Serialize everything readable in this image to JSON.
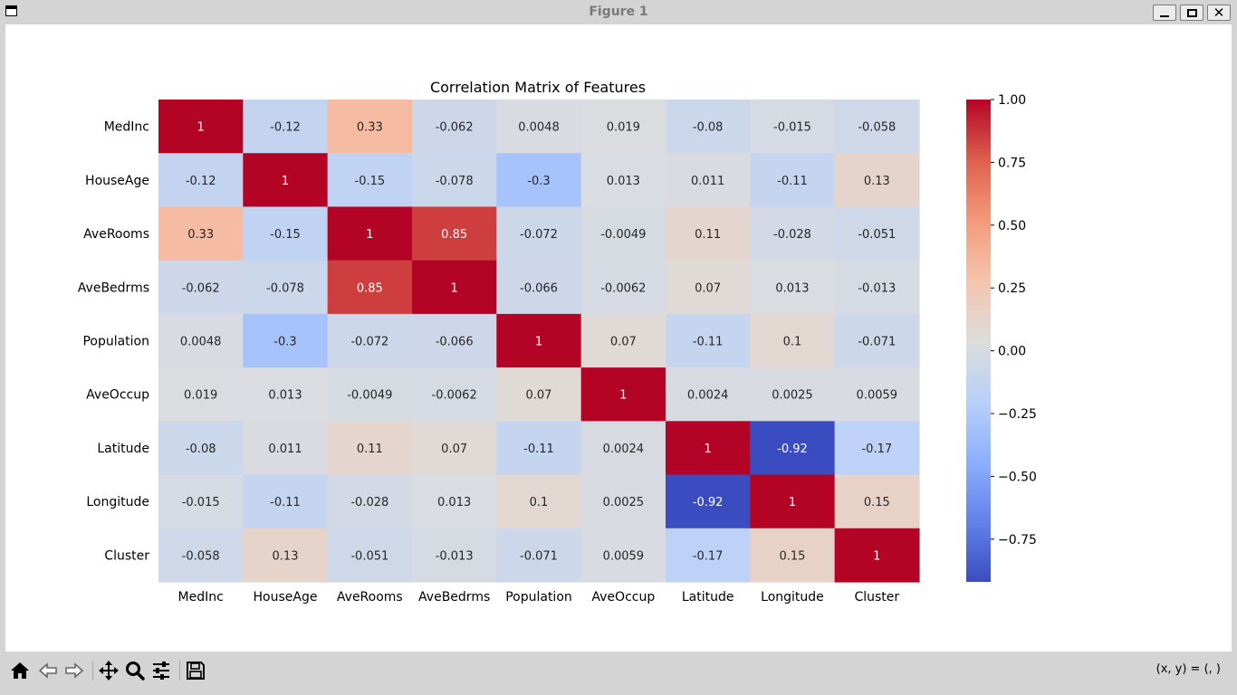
{
  "window": {
    "title": "Figure 1"
  },
  "toolbar": {
    "buttons": [
      {
        "name": "home-button",
        "icon": "home-icon"
      },
      {
        "name": "back-button",
        "icon": "back-arrow-icon"
      },
      {
        "name": "forward-button",
        "icon": "forward-arrow-icon"
      },
      {
        "name": "pan-button",
        "icon": "pan-icon"
      },
      {
        "name": "zoom-button",
        "icon": "zoom-icon"
      },
      {
        "name": "configure-subplots-button",
        "icon": "sliders-icon"
      },
      {
        "name": "save-button",
        "icon": "save-icon"
      }
    ],
    "coords": "(x, y) = (, )"
  },
  "chart_data": {
    "type": "heatmap",
    "title": "Correlation Matrix of Features",
    "colormap": "coolwarm",
    "labels": [
      "MedInc",
      "HouseAge",
      "AveRooms",
      "AveBedrms",
      "Population",
      "AveOccup",
      "Latitude",
      "Longitude",
      "Cluster"
    ],
    "display": [
      [
        "1",
        "-0.12",
        "0.33",
        "-0.062",
        "0.0048",
        "0.019",
        "-0.08",
        "-0.015",
        "-0.058"
      ],
      [
        "-0.12",
        "1",
        "-0.15",
        "-0.078",
        "-0.3",
        "0.013",
        "0.011",
        "-0.11",
        "0.13"
      ],
      [
        "0.33",
        "-0.15",
        "1",
        "0.85",
        "-0.072",
        "-0.0049",
        "0.11",
        "-0.028",
        "-0.051"
      ],
      [
        "-0.062",
        "-0.078",
        "0.85",
        "1",
        "-0.066",
        "-0.0062",
        "0.07",
        "0.013",
        "-0.013"
      ],
      [
        "0.0048",
        "-0.3",
        "-0.072",
        "-0.066",
        "1",
        "0.07",
        "-0.11",
        "0.1",
        "-0.071"
      ],
      [
        "0.019",
        "0.013",
        "-0.0049",
        "-0.0062",
        "0.07",
        "1",
        "0.0024",
        "0.0025",
        "0.0059"
      ],
      [
        "-0.08",
        "0.011",
        "0.11",
        "0.07",
        "-0.11",
        "0.0024",
        "1",
        "-0.92",
        "-0.17"
      ],
      [
        "-0.015",
        "-0.11",
        "-0.028",
        "0.013",
        "0.1",
        "0.0025",
        "-0.92",
        "1",
        "0.15"
      ],
      [
        "-0.058",
        "0.13",
        "-0.051",
        "-0.013",
        "-0.071",
        "0.0059",
        "-0.17",
        "0.15",
        "1"
      ]
    ],
    "vmin": -0.92,
    "vmax": 1.0,
    "colorbar_ticks": [
      {
        "value": 1.0,
        "label": "1.00"
      },
      {
        "value": 0.75,
        "label": "0.75"
      },
      {
        "value": 0.5,
        "label": "0.50"
      },
      {
        "value": 0.25,
        "label": "0.25"
      },
      {
        "value": 0.0,
        "label": "0.00"
      },
      {
        "value": -0.25,
        "label": "−0.25"
      },
      {
        "value": -0.5,
        "label": "−0.50"
      },
      {
        "value": -0.75,
        "label": "−0.75"
      }
    ]
  }
}
